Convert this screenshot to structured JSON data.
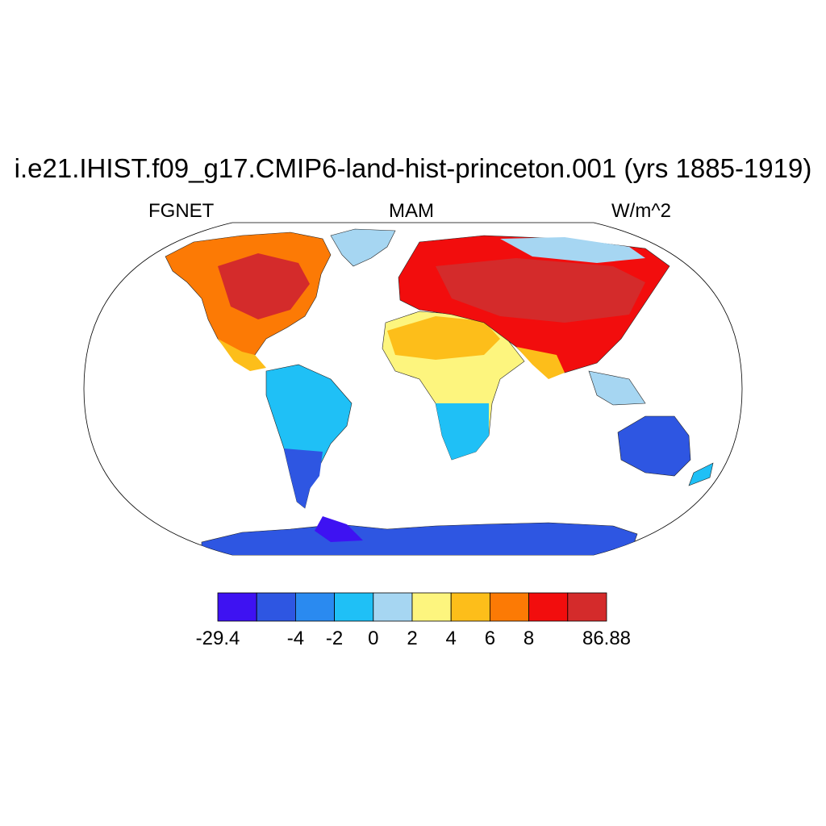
{
  "title": "i.e21.IHIST.f09_g17.CMIP6-land-hist-princeton.001 (yrs 1885-1919)",
  "subtitle_left": "FGNET",
  "subtitle_center": "MAM",
  "subtitle_right": "W/m^2",
  "colorbar": {
    "colors": [
      "#3e12f2",
      "#2e56e2",
      "#2a8af0",
      "#1fc0f6",
      "#a6d6f2",
      "#fdf57e",
      "#fdbe1a",
      "#fc7a05",
      "#f20d0d",
      "#d42b2b"
    ],
    "labels": [
      "-29.4",
      "-4",
      "-2",
      "0",
      "2",
      "4",
      "6",
      "8",
      "86.88"
    ]
  }
}
